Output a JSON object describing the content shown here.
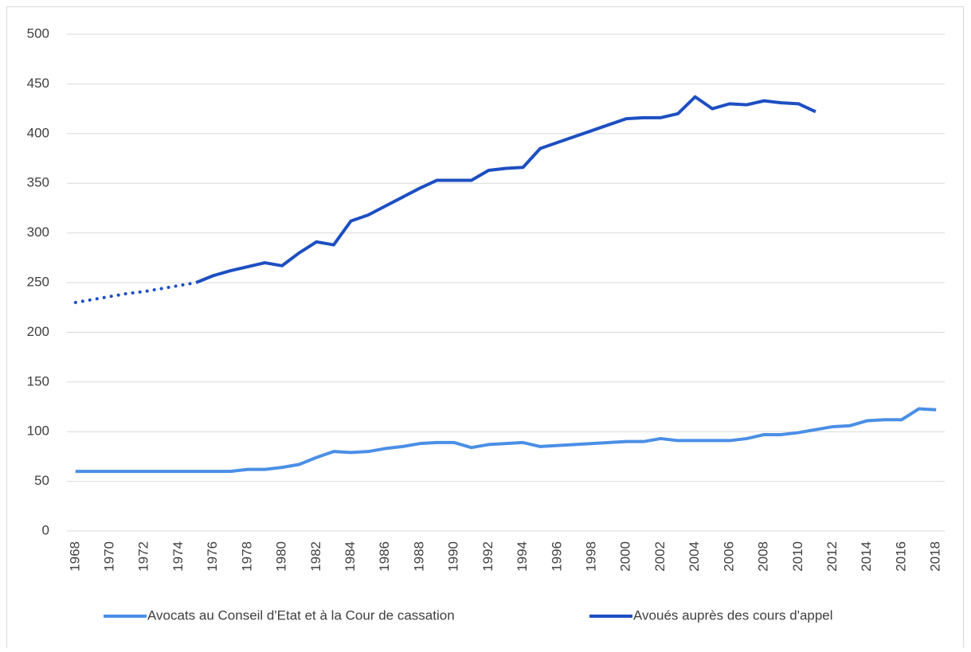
{
  "chart_data": {
    "type": "line",
    "categories": [
      "1968",
      null,
      "1970",
      null,
      "1972",
      null,
      "1974",
      null,
      "1976",
      null,
      "1978",
      null,
      "1980",
      null,
      "1982",
      null,
      "1984",
      null,
      "1986",
      null,
      "1988",
      null,
      "1990",
      null,
      "1992",
      null,
      "1994",
      null,
      "1996",
      null,
      "1998",
      null,
      "2000",
      null,
      "2002",
      null,
      "2004",
      null,
      "2006",
      null,
      "2008",
      null,
      "2010",
      null,
      "2012",
      null,
      "2014",
      null,
      "2016",
      null,
      "2018"
    ],
    "series": [
      {
        "name": "Avocats au Conseil d'Etat et à la Cour de cassation",
        "color": "#4a8fe6",
        "values": [
          60,
          60,
          60,
          60,
          60,
          60,
          60,
          60,
          60,
          60,
          62,
          62,
          64,
          67,
          74,
          80,
          79,
          80,
          83,
          85,
          88,
          89,
          89,
          84,
          87,
          88,
          89,
          85,
          86,
          87,
          88,
          89,
          90,
          90,
          93,
          91,
          91,
          91,
          91,
          93,
          97,
          97,
          99,
          102,
          105,
          106,
          111,
          112,
          112,
          123,
          122
        ]
      },
      {
        "name": "Avoués auprès des cours d'appel",
        "color": "#1d4fc2",
        "dotted_range": [
          0,
          7
        ],
        "values": [
          230,
          233,
          236,
          239,
          241,
          244,
          247,
          250,
          257,
          262,
          266,
          270,
          267,
          280,
          291,
          288,
          312,
          318,
          327,
          336,
          345,
          353,
          353,
          353,
          363,
          365,
          366,
          385,
          391,
          397,
          403,
          409,
          415,
          416,
          416,
          420,
          437,
          425,
          430,
          429,
          433,
          431,
          430,
          422,
          null,
          null,
          null,
          null,
          null,
          null,
          null
        ]
      }
    ],
    "ylim": [
      0,
      500
    ],
    "yticks": [
      0,
      50,
      100,
      150,
      200,
      250,
      300,
      350,
      400,
      450,
      500
    ],
    "grid": true,
    "legend": "bottom"
  }
}
